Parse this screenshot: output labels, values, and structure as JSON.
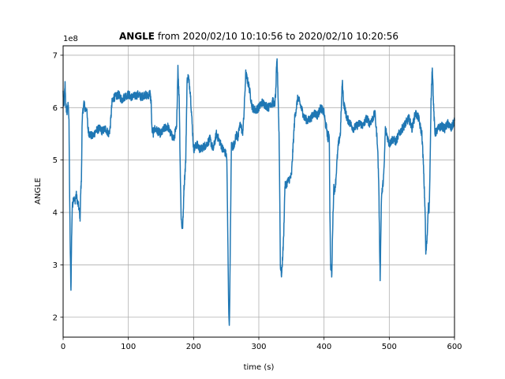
{
  "chart_data": {
    "type": "line",
    "title_bold": "ANGLE",
    "title_rest": " from 2020/02/10 10:10:56 to 2020/02/10 10:20:56",
    "xlabel": "time (s)",
    "ylabel": "ANGLE",
    "y_offset_label": "1e8",
    "xlim": [
      0,
      600
    ],
    "ylim": [
      1.62,
      7.18
    ],
    "xticks": [
      0,
      100,
      200,
      300,
      400,
      500,
      600
    ],
    "yticks": [
      2,
      3,
      4,
      5,
      6,
      7
    ],
    "grid": true,
    "line_color": "#1f77b4",
    "series": [
      {
        "x": [
          0,
          1,
          2,
          3,
          4,
          6,
          8,
          9,
          10,
          11,
          12,
          13,
          14,
          16,
          18,
          20,
          22,
          24,
          26,
          27,
          28,
          29,
          30,
          32,
          34,
          36,
          38,
          40,
          45,
          50,
          55,
          60,
          65,
          70,
          72,
          75,
          78,
          80,
          85,
          90,
          95,
          100,
          105,
          110,
          115,
          120,
          125,
          130,
          133,
          135,
          136,
          138,
          140,
          145,
          150,
          155,
          160,
          165,
          170,
          172,
          174,
          175,
          176,
          177,
          178,
          179,
          180,
          181,
          182,
          183,
          184,
          185,
          186,
          188,
          190,
          192,
          195,
          200,
          205,
          210,
          215,
          220,
          225,
          230,
          235,
          240,
          245,
          248,
          250,
          251,
          252,
          253,
          254,
          255,
          256,
          257,
          258,
          260,
          262,
          264,
          266,
          268,
          270,
          272,
          275,
          277,
          278,
          280,
          285,
          290,
          295,
          300,
          305,
          310,
          315,
          318,
          320,
          322,
          324,
          326,
          327,
          328,
          329,
          330,
          331,
          332,
          333,
          335,
          338,
          340,
          345,
          350,
          355,
          360,
          365,
          370,
          375,
          380,
          385,
          390,
          395,
          400,
          402,
          404,
          406,
          407,
          408,
          409,
          410,
          412,
          413,
          415,
          416,
          418,
          420,
          422,
          425,
          428,
          430,
          435,
          440,
          445,
          450,
          455,
          460,
          465,
          470,
          475,
          478,
          480,
          482,
          484,
          485,
          486,
          487,
          488,
          490,
          492,
          494,
          496,
          498,
          500,
          505,
          510,
          515,
          520,
          525,
          530,
          535,
          540,
          545,
          548,
          550,
          552,
          555,
          556,
          558,
          560,
          561,
          562,
          563,
          564,
          565,
          566,
          568,
          570,
          575,
          580,
          585,
          590,
          595,
          600
        ],
        "values": [
          6.3,
          6.0,
          6.2,
          6.45,
          6.05,
          5.9,
          6.1,
          5.7,
          4.3,
          3.2,
          2.5,
          3.5,
          4.1,
          4.3,
          4.2,
          4.35,
          4.2,
          4.1,
          3.9,
          4.4,
          4.6,
          5.6,
          5.9,
          6.1,
          5.95,
          6.0,
          5.6,
          5.5,
          5.45,
          5.55,
          5.6,
          5.55,
          5.6,
          5.5,
          5.6,
          6.1,
          6.2,
          6.2,
          6.25,
          6.15,
          6.22,
          6.25,
          6.2,
          6.22,
          6.25,
          6.2,
          6.25,
          6.22,
          6.28,
          6.1,
          5.6,
          5.5,
          5.6,
          5.55,
          5.5,
          5.6,
          5.65,
          5.5,
          5.4,
          5.55,
          5.6,
          6.2,
          6.8,
          6.4,
          6.2,
          5.3,
          4.5,
          3.9,
          3.75,
          3.7,
          3.9,
          4.4,
          4.6,
          5.0,
          6.5,
          6.6,
          6.3,
          5.2,
          5.3,
          5.2,
          5.25,
          5.3,
          5.4,
          5.2,
          5.5,
          5.35,
          5.2,
          5.15,
          5.1,
          5.0,
          4.0,
          3.0,
          2.0,
          1.9,
          3.0,
          4.2,
          5.3,
          5.25,
          5.3,
          5.4,
          5.5,
          5.4,
          5.6,
          5.7,
          5.5,
          5.8,
          6.1,
          6.65,
          6.4,
          6.0,
          5.95,
          6.0,
          6.1,
          6.05,
          6.0,
          6.1,
          6.05,
          6.15,
          6.0,
          6.3,
          6.7,
          6.9,
          6.5,
          6.0,
          5.5,
          4.5,
          3.0,
          2.8,
          3.5,
          4.5,
          4.6,
          4.7,
          5.8,
          6.2,
          6.0,
          5.8,
          5.75,
          5.8,
          5.9,
          5.85,
          6.0,
          5.9,
          5.7,
          5.6,
          5.4,
          5.5,
          5.5,
          4.0,
          3.0,
          2.8,
          3.6,
          4.5,
          4.4,
          4.6,
          5.0,
          5.3,
          5.5,
          6.5,
          6.1,
          5.8,
          5.7,
          5.6,
          5.65,
          5.7,
          5.65,
          5.8,
          5.7,
          5.8,
          5.9,
          5.6,
          5.3,
          4.5,
          3.5,
          2.75,
          3.5,
          4.3,
          4.5,
          4.8,
          5.6,
          5.5,
          5.4,
          5.3,
          5.4,
          5.35,
          5.5,
          5.6,
          5.7,
          5.8,
          5.6,
          5.9,
          5.8,
          5.6,
          5.5,
          5.0,
          4.0,
          3.2,
          3.5,
          4.2,
          4.0,
          4.5,
          5.2,
          6.1,
          6.5,
          6.8,
          6.0,
          5.5,
          5.6,
          5.65,
          5.6,
          5.7,
          5.6,
          5.75
        ]
      }
    ]
  }
}
